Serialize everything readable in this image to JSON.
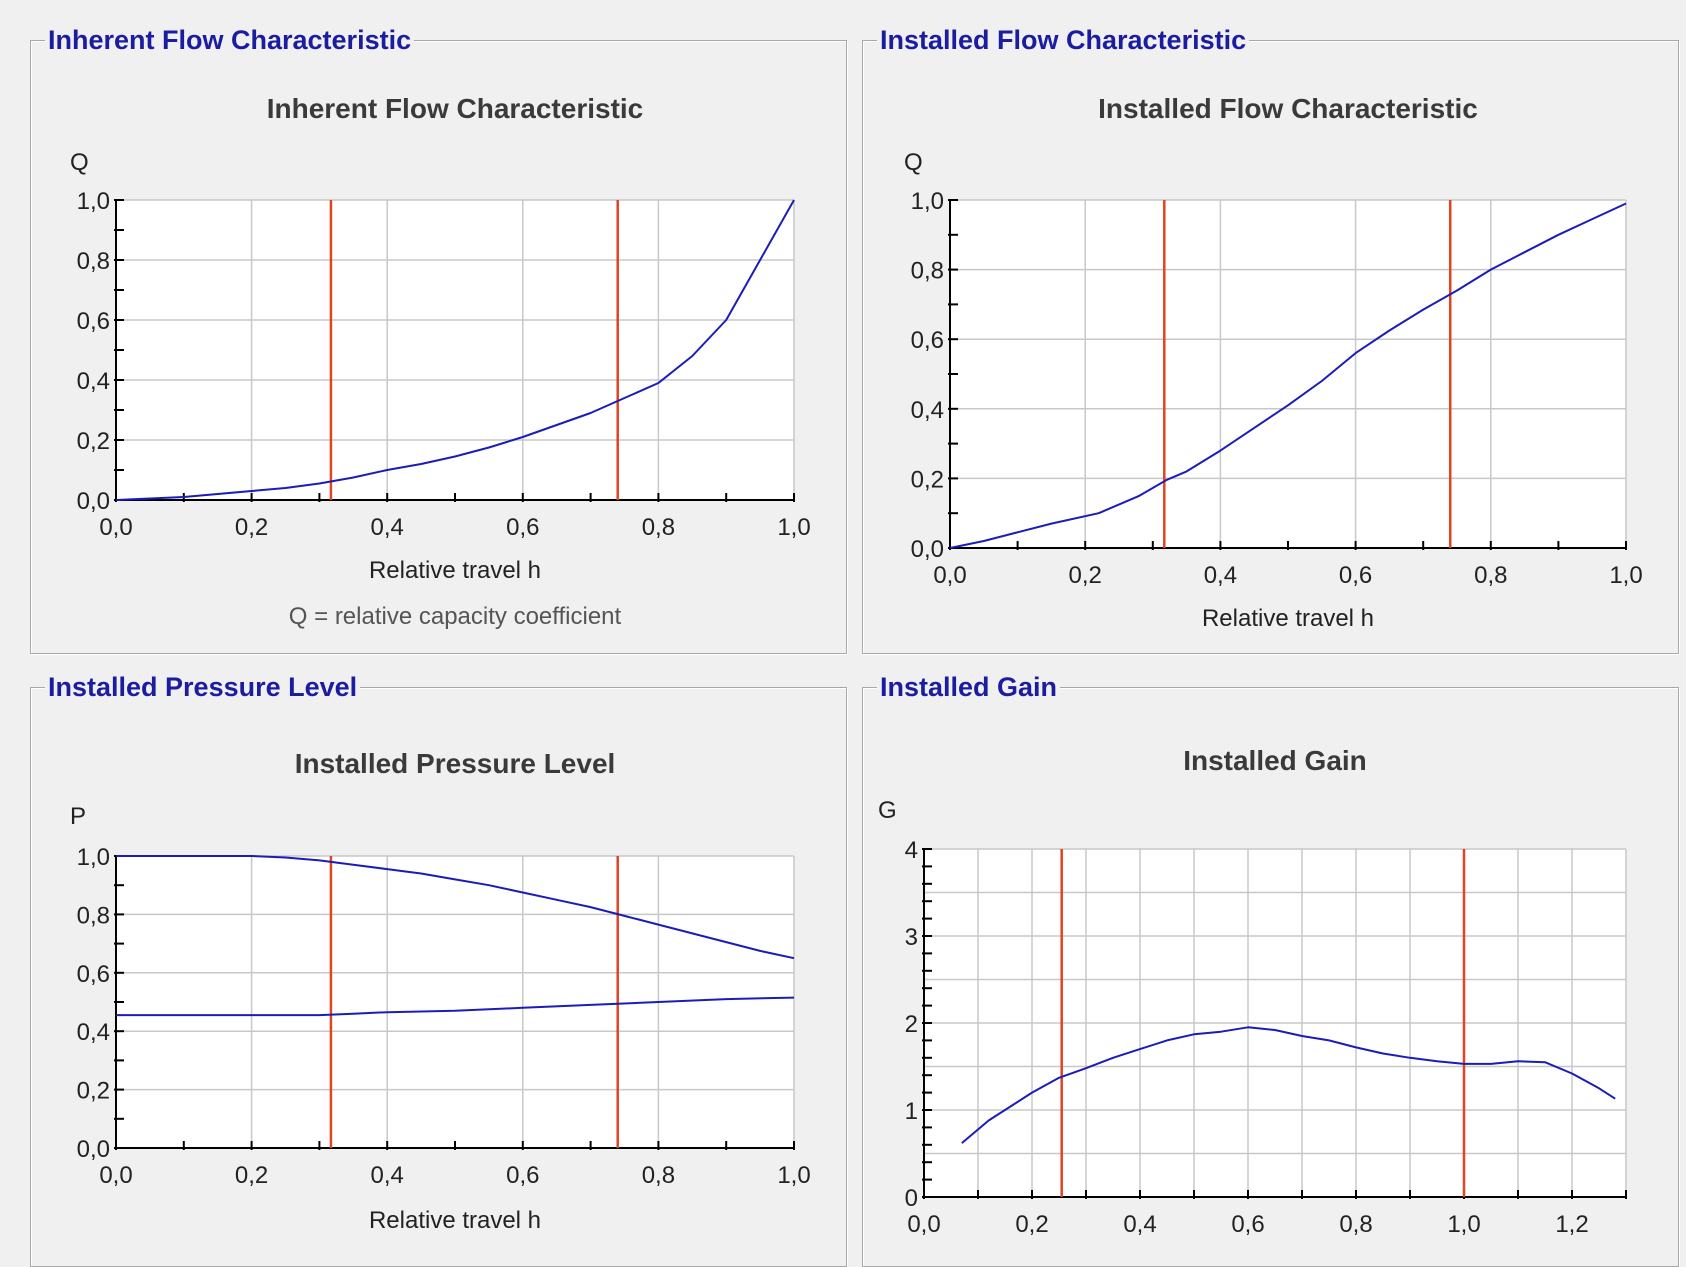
{
  "panels": {
    "inherent": {
      "group_title": "Inherent Flow Characteristic"
    },
    "installed_flow": {
      "group_title": "Installed Flow Characteristic"
    },
    "pressure": {
      "group_title": "Installed Pressure Level"
    },
    "gain": {
      "group_title": "Installed Gain"
    }
  },
  "colors": {
    "curve": "#1c1cb8",
    "marker": "#e04420",
    "grid": "#c8c8c8",
    "axis": "#000000",
    "group_title": "#1c1ca0",
    "plot_background": "#ffffff"
  },
  "chart_data": [
    {
      "id": "inherent",
      "type": "line",
      "title": "Inherent Flow Characteristic",
      "ylabel": "Q",
      "xlabel": "Relative travel h",
      "note": "Q = relative capacity coefficient",
      "xlim": [
        0,
        1
      ],
      "ylim": [
        0,
        1
      ],
      "xticks": [
        "0,0",
        "0,2",
        "0,4",
        "0,6",
        "0,8",
        "1,0"
      ],
      "yticks": [
        "0,0",
        "0,2",
        "0,4",
        "0,6",
        "0,8",
        "1,0"
      ],
      "grid": true,
      "vlines": [
        0.317,
        0.74
      ],
      "series": [
        {
          "x": [
            0.0,
            0.05,
            0.1,
            0.15,
            0.2,
            0.25,
            0.3,
            0.35,
            0.4,
            0.45,
            0.5,
            0.55,
            0.6,
            0.65,
            0.7,
            0.75,
            0.8,
            0.85,
            0.9,
            0.95,
            1.0
          ],
          "values": [
            0.0,
            0.005,
            0.01,
            0.02,
            0.03,
            0.04,
            0.055,
            0.075,
            0.1,
            0.12,
            0.145,
            0.175,
            0.21,
            0.25,
            0.29,
            0.34,
            0.39,
            0.48,
            0.6,
            0.8,
            1.0
          ]
        }
      ]
    },
    {
      "id": "installed_flow",
      "type": "line",
      "title": "Installed Flow Characteristic",
      "ylabel": "Q",
      "xlabel": "Relative travel h",
      "xlim": [
        0,
        1
      ],
      "ylim": [
        0,
        1
      ],
      "xticks": [
        "0,0",
        "0,2",
        "0,4",
        "0,6",
        "0,8",
        "1,0"
      ],
      "yticks": [
        "0,0",
        "0,2",
        "0,4",
        "0,6",
        "0,8",
        "1,0"
      ],
      "grid": true,
      "vlines": [
        0.317,
        0.74
      ],
      "series": [
        {
          "x": [
            0.0,
            0.05,
            0.1,
            0.15,
            0.22,
            0.28,
            0.32,
            0.35,
            0.4,
            0.45,
            0.5,
            0.55,
            0.6,
            0.65,
            0.7,
            0.75,
            0.8,
            0.85,
            0.9,
            0.95,
            1.0
          ],
          "values": [
            0.0,
            0.02,
            0.045,
            0.07,
            0.1,
            0.15,
            0.195,
            0.22,
            0.28,
            0.345,
            0.41,
            0.48,
            0.56,
            0.625,
            0.685,
            0.74,
            0.8,
            0.85,
            0.9,
            0.945,
            0.99
          ]
        }
      ]
    },
    {
      "id": "pressure",
      "type": "line",
      "title": "Installed Pressure Level",
      "ylabel": "P",
      "xlabel": "Relative travel h",
      "xlim": [
        0,
        1
      ],
      "ylim": [
        0,
        1
      ],
      "xticks": [
        "0,0",
        "0,2",
        "0,4",
        "0,6",
        "0,8",
        "1,0"
      ],
      "yticks": [
        "0,0",
        "0,2",
        "0,4",
        "0,6",
        "0,8",
        "1,0"
      ],
      "grid": true,
      "vlines": [
        0.317,
        0.74
      ],
      "series": [
        {
          "x": [
            0.0,
            0.1,
            0.2,
            0.25,
            0.3,
            0.35,
            0.4,
            0.45,
            0.5,
            0.55,
            0.6,
            0.65,
            0.7,
            0.75,
            0.8,
            0.85,
            0.9,
            0.95,
            1.0
          ],
          "values": [
            1.0,
            1.0,
            1.0,
            0.995,
            0.985,
            0.97,
            0.955,
            0.94,
            0.92,
            0.9,
            0.875,
            0.85,
            0.825,
            0.795,
            0.765,
            0.735,
            0.705,
            0.675,
            0.65
          ]
        },
        {
          "x": [
            0.0,
            0.2,
            0.3,
            0.35,
            0.4,
            0.5,
            0.6,
            0.7,
            0.8,
            0.9,
            1.0
          ],
          "values": [
            0.455,
            0.455,
            0.455,
            0.46,
            0.465,
            0.47,
            0.48,
            0.49,
            0.5,
            0.51,
            0.515
          ]
        }
      ]
    },
    {
      "id": "gain",
      "type": "line",
      "title": "Installed Gain",
      "ylabel": "G",
      "xlim": [
        0,
        1.3
      ],
      "ylim": [
        0,
        4
      ],
      "xticks": [
        "0,0",
        "0,2",
        "0,4",
        "0,6",
        "0,8",
        "1,0",
        "1,2"
      ],
      "yticks": [
        "0",
        "1",
        "2",
        "3",
        "4"
      ],
      "grid": true,
      "vlines": [
        0.255,
        1.0
      ],
      "series": [
        {
          "x": [
            0.07,
            0.12,
            0.2,
            0.25,
            0.3,
            0.35,
            0.4,
            0.45,
            0.5,
            0.55,
            0.6,
            0.65,
            0.7,
            0.75,
            0.8,
            0.85,
            0.9,
            0.95,
            1.0,
            1.05,
            1.1,
            1.15,
            1.2,
            1.25,
            1.28
          ],
          "values": [
            0.62,
            0.88,
            1.2,
            1.37,
            1.48,
            1.6,
            1.7,
            1.8,
            1.87,
            1.9,
            1.95,
            1.92,
            1.85,
            1.8,
            1.72,
            1.65,
            1.6,
            1.56,
            1.53,
            1.53,
            1.56,
            1.55,
            1.42,
            1.25,
            1.13
          ]
        }
      ]
    }
  ]
}
